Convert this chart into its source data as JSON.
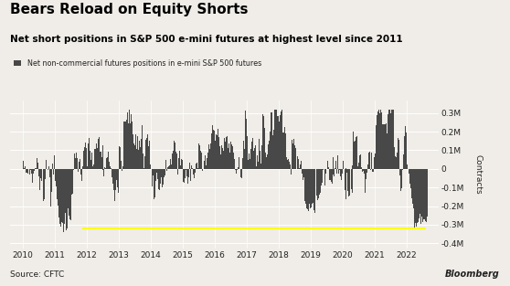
{
  "title": "Bears Reload on Equity Shorts",
  "subtitle": "Net short positions in S&P 500 e-mini futures at highest level since 2011",
  "legend_label": "Net non-commercial futures positions in e-mini S&P 500 futures",
  "ylabel": "Contracts",
  "source": "Source: CFTC",
  "watermark": "Bloomberg",
  "bar_color": "#484848",
  "bg_color": "#f0ede8",
  "yellow_line_y": -322000,
  "yellow_line_start_year": 2011.85,
  "yellow_line_end_year": 2022.6,
  "ylim": [
    -430000,
    370000
  ],
  "yticks": [
    -400000,
    -300000,
    -200000,
    -100000,
    0,
    100000,
    200000,
    300000
  ],
  "ytick_labels": [
    "-0.4M",
    "-0.3M",
    "-0.2M",
    "-0.1M",
    "0",
    "0.1M",
    "0.2M",
    "0.3M"
  ],
  "xlim_start": 2009.6,
  "xlim_end": 2023.0,
  "year_ticks": [
    2010,
    2011,
    2012,
    2013,
    2014,
    2015,
    2016,
    2017,
    2018,
    2019,
    2020,
    2021,
    2022
  ]
}
